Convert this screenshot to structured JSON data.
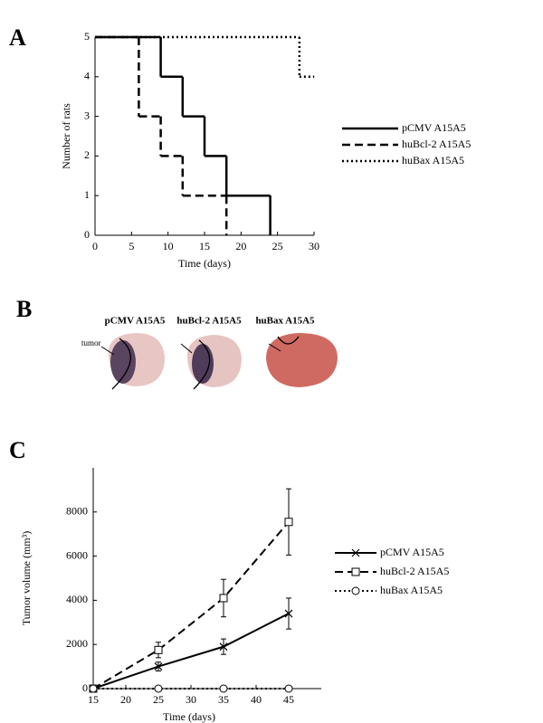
{
  "figure": {
    "panel_labels": [
      "A",
      "B",
      "C"
    ],
    "histology": {
      "titles": [
        "pCMV A15A5",
        "huBcl-2 A15A5",
        "huBax A15A5"
      ],
      "annotation": "tumor"
    }
  },
  "chart_data": [
    {
      "type": "step",
      "xlabel": "Time (days)",
      "ylabel": "Number of rats",
      "xlim": [
        0,
        30
      ],
      "xticks": [
        0,
        5,
        10,
        15,
        20,
        25,
        30
      ],
      "ylim": [
        0,
        5
      ],
      "yticks": [
        0,
        1,
        2,
        3,
        4,
        5
      ],
      "legend": "right",
      "series": [
        {
          "name": "pCMV A15A5",
          "color": "#000000",
          "style": "solid",
          "x": [
            0,
            9,
            12,
            15,
            18,
            24
          ],
          "values": [
            5,
            4,
            3,
            2,
            1,
            0
          ]
        },
        {
          "name": "huBcl-2 A15A5",
          "color": "#000000",
          "style": "dashed",
          "x": [
            0,
            6,
            9,
            12,
            18
          ],
          "values": [
            5,
            3,
            2,
            1,
            0
          ]
        },
        {
          "name": "huBax A15A5",
          "color": "#000000",
          "style": "dotted",
          "x": [
            0,
            28,
            30
          ],
          "values": [
            5,
            4,
            4
          ]
        }
      ]
    },
    {
      "type": "line",
      "xlabel": "Time (days)",
      "ylabel": "Tumor volume (mm³)",
      "xlim": [
        15,
        50
      ],
      "xticks": [
        15,
        20,
        25,
        30,
        35,
        40,
        45
      ],
      "ylim": [
        0,
        10000
      ],
      "yticks": [
        0,
        2000,
        4000,
        6000,
        8000
      ],
      "legend": "right",
      "series": [
        {
          "name": "pCMV A15A5",
          "color": "#000000",
          "style": "solid",
          "marker": "x",
          "x": [
            15,
            25,
            35,
            45
          ],
          "values": [
            0,
            1000,
            1900,
            3400
          ],
          "errors": [
            0,
            200,
            350,
            700
          ]
        },
        {
          "name": "huBcl-2 A15A5",
          "color": "#000000",
          "style": "dashed",
          "marker": "square",
          "x": [
            15,
            25,
            35,
            45
          ],
          "values": [
            0,
            1750,
            4100,
            7550
          ],
          "errors": [
            0,
            350,
            850,
            1500
          ]
        },
        {
          "name": "huBax A15A5",
          "color": "#000000",
          "style": "dotted",
          "marker": "circle",
          "x": [
            15,
            25,
            35,
            45
          ],
          "values": [
            0,
            0,
            0,
            0
          ]
        }
      ]
    }
  ]
}
